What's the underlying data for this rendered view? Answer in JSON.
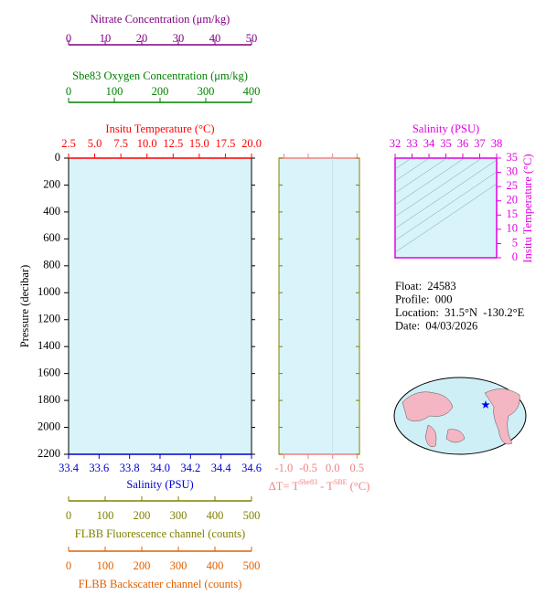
{
  "chart_data": [
    {
      "type": "profile",
      "ylabel": "Pressure (decibar)",
      "ylim": [
        0,
        2200
      ],
      "yticks": [
        0,
        200,
        400,
        600,
        800,
        1000,
        1200,
        1400,
        1600,
        1800,
        2000,
        2200
      ],
      "background": "#d8f4fa",
      "x_axes": [
        {
          "label": "Nitrate Concentration (μm/kg)",
          "xlim": [
            0,
            50
          ],
          "xticks": [
            0,
            10,
            20,
            30,
            40,
            50
          ],
          "color": "#800080"
        },
        {
          "label": "Sbe83 Oxygen Concentration (μm/kg)",
          "xlim": [
            0,
            400
          ],
          "xticks": [
            0,
            100,
            200,
            300,
            400
          ],
          "color": "#008000"
        },
        {
          "label": "Insitu Temperature (°C)",
          "xlim": [
            2.5,
            20
          ],
          "xticks": [
            2.5,
            {
              "value": 5,
              "label": "5.0"
            },
            7.5,
            {
              "value": 10,
              "label": "10.0"
            },
            12.5,
            {
              "value": 15,
              "label": "15.0"
            },
            17.5,
            {
              "value": 20,
              "label": "20.0"
            }
          ],
          "color": "#ff0000"
        },
        {
          "label": "Salinity (PSU)",
          "xlim": [
            33.4,
            34.6
          ],
          "xticks": [
            33.4,
            33.6,
            33.8,
            {
              "value": 34,
              "label": "34.0"
            },
            34.2,
            34.4,
            34.6
          ],
          "color": "#0000cc"
        },
        {
          "label": "FLBB Fluorescence channel (counts)",
          "xlim": [
            0,
            500
          ],
          "xticks": [
            0,
            100,
            200,
            300,
            400,
            500
          ],
          "color": "#808000"
        },
        {
          "label": "FLBB Backscatter channel (counts)",
          "xlim": [
            0,
            500
          ],
          "xticks": [
            0,
            100,
            200,
            300,
            400,
            500
          ],
          "color": "#e06000"
        }
      ]
    },
    {
      "type": "profile",
      "xlabel_parts": [
        "ΔT= T",
        "Sbe83",
        " - T",
        "SBE",
        " (°C)"
      ],
      "xlim": [
        -1.1,
        0.55
      ],
      "xticks": [
        {
          "value": -1,
          "label": "-1.0"
        },
        -0.5,
        {
          "value": 0,
          "label": "0.0"
        },
        0.5
      ],
      "color": "#f08080",
      "frame_color": "#808000",
      "background": "#d8f4fa"
    },
    {
      "type": "ts",
      "xlabel": "Salinity (PSU)",
      "xlim": [
        32,
        38
      ],
      "xticks": [
        32,
        33,
        34,
        35,
        36,
        37,
        38
      ],
      "ylabel": "Insitu Temperature (°C)",
      "ylim": [
        0,
        35
      ],
      "yticks": [
        0,
        5,
        10,
        15,
        20,
        25,
        30,
        35
      ],
      "color": "#e000e0",
      "background": "#d8f4fa"
    }
  ],
  "info": [
    "Float:  24583",
    "Profile:  000",
    "Location:  31.5°N  -130.2°E",
    "Date:  04/03/2026"
  ]
}
